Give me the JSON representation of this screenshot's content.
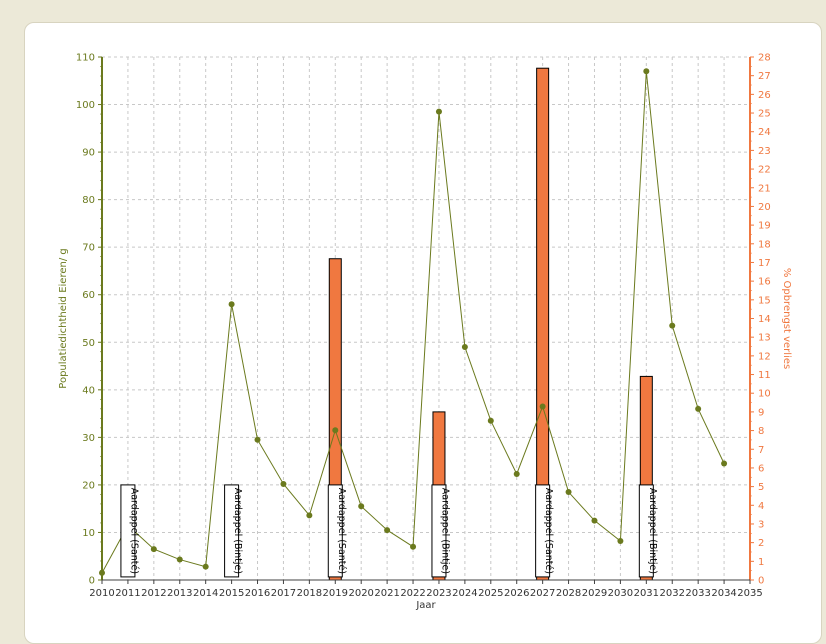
{
  "chart_data": {
    "type": "line+bar",
    "xlabel": "Jaar",
    "ylabel_left": "Populatiedichtheid Eieren/ g",
    "ylabel_right": "% Opbrengst verlies",
    "x_ticks": [
      2010,
      2011,
      2012,
      2013,
      2014,
      2015,
      2016,
      2017,
      2018,
      2019,
      2020,
      2021,
      2022,
      2023,
      2024,
      2025,
      2026,
      2027,
      2028,
      2029,
      2030,
      2031,
      2032,
      2033,
      2034,
      2035
    ],
    "xlim": [
      2010,
      2035
    ],
    "ylim_left": [
      0,
      110
    ],
    "ylim_right": [
      0,
      28
    ],
    "y_left_ticks": [
      0,
      10,
      20,
      30,
      40,
      50,
      60,
      70,
      80,
      90,
      100,
      110
    ],
    "y_right_ticks": [
      0,
      1,
      2,
      3,
      4,
      5,
      6,
      7,
      8,
      9,
      10,
      11,
      12,
      13,
      14,
      15,
      16,
      17,
      18,
      19,
      20,
      21,
      22,
      23,
      24,
      25,
      26,
      27,
      28
    ],
    "grid": true,
    "colors": {
      "line": "#6b7a1e",
      "bar": "#f07840",
      "right_axis": "#f07840",
      "left_axis": "#6b7a1e"
    },
    "population_series": {
      "x": [
        2010,
        2011,
        2012,
        2013,
        2014,
        2015,
        2016,
        2017,
        2018,
        2019,
        2020,
        2021,
        2022,
        2023,
        2024,
        2025,
        2026,
        2027,
        2028,
        2029,
        2030,
        2031,
        2032,
        2033,
        2034
      ],
      "y": [
        1.5,
        11.5,
        6.5,
        4.3,
        2.8,
        58,
        29.5,
        20.2,
        13.6,
        31.5,
        15.5,
        10.5,
        7,
        98.5,
        49,
        33.5,
        22.3,
        36.5,
        18.5,
        12.5,
        8.2,
        107,
        53.5,
        36,
        24.5
      ]
    },
    "yield_loss_bars": [
      {
        "x": 2019,
        "value": 17.2
      },
      {
        "x": 2023,
        "value": 9
      },
      {
        "x": 2027,
        "value": 27.4
      },
      {
        "x": 2031,
        "value": 10.9
      }
    ],
    "crop_labels": [
      {
        "x": 2011,
        "text": "Aardappel (Santé)"
      },
      {
        "x": 2015,
        "text": "Aardappel (Bintje)"
      },
      {
        "x": 2019,
        "text": "Aardappel (Santé)"
      },
      {
        "x": 2023,
        "text": "Aardappel (Bintje)"
      },
      {
        "x": 2027,
        "text": "Aardappel (Santé)"
      },
      {
        "x": 2031,
        "text": "Aardappel (Bintje)"
      }
    ]
  }
}
